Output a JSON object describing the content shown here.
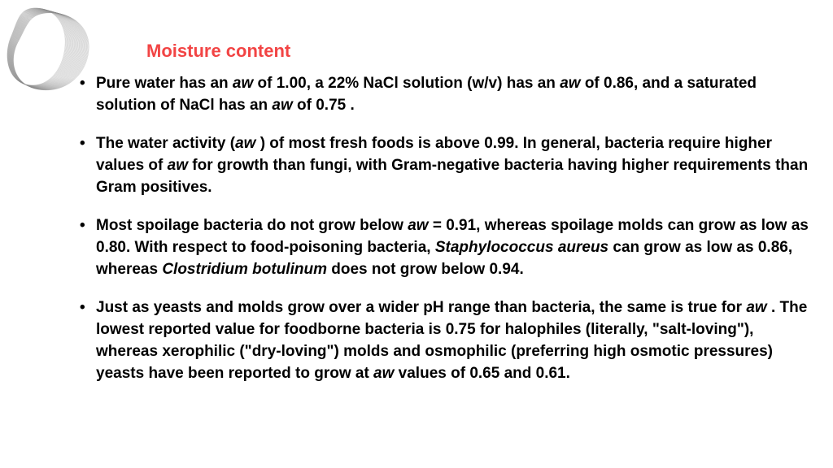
{
  "title": "Moisture content",
  "title_color": "#f24444",
  "text_color": "#000000",
  "background_color": "#ffffff",
  "font_size_title": 22,
  "font_size_body": 19,
  "bullets": [
    {
      "segments": [
        {
          "t": "Pure water has an ",
          "i": false
        },
        {
          "t": "aw ",
          "i": true
        },
        {
          "t": "of 1.00, a 22% NaCl solution (w/v) has an ",
          "i": false
        },
        {
          "t": "aw ",
          "i": true
        },
        {
          "t": "of 0.86, and a saturated solution of NaCl has an ",
          "i": false
        },
        {
          "t": "aw ",
          "i": true
        },
        {
          "t": "of 0.75 .",
          "i": false
        }
      ]
    },
    {
      "segments": [
        {
          "t": "The water activity (",
          "i": false
        },
        {
          "t": "aw ",
          "i": true
        },
        {
          "t": ") of most fresh foods is above 0.99. In general, bacteria require higher values of ",
          "i": false
        },
        {
          "t": "aw ",
          "i": true
        },
        {
          "t": "for growth than fungi, with Gram-negative bacteria having higher requirements than Gram positives.",
          "i": false
        }
      ]
    },
    {
      "segments": [
        {
          "t": "Most spoilage bacteria do not grow below ",
          "i": false
        },
        {
          "t": "aw ",
          "i": true
        },
        {
          "t": "= 0.91, whereas spoilage molds can grow as low as 0.80. With respect to food-poisoning bacteria, ",
          "i": false
        },
        {
          "t": "Staphylococcus aureus ",
          "i": true
        },
        {
          "t": "can grow as low as 0.86, whereas ",
          "i": false
        },
        {
          "t": "Clostridium botulinum ",
          "i": true
        },
        {
          "t": "does not grow below 0.94.",
          "i": false
        }
      ]
    },
    {
      "segments": [
        {
          "t": "Just as yeasts and molds grow over a wider pH range than bacteria, the same is true for ",
          "i": false
        },
        {
          "t": "aw ",
          "i": true
        },
        {
          "t": ". The lowest reported value for foodborne bacteria is 0.75 for halophiles (literally, \"salt-loving\"), whereas xerophilic (\"dry-loving\") molds and osmophilic (preferring high osmotic pressures) yeasts have been reported to grow at ",
          "i": false
        },
        {
          "t": "aw ",
          "i": true
        },
        {
          "t": "values of 0.65 and 0.61.",
          "i": false
        }
      ]
    }
  ],
  "decoration": {
    "stroke_color": "#888888",
    "stroke_width": 0.4,
    "line_count": 40
  }
}
